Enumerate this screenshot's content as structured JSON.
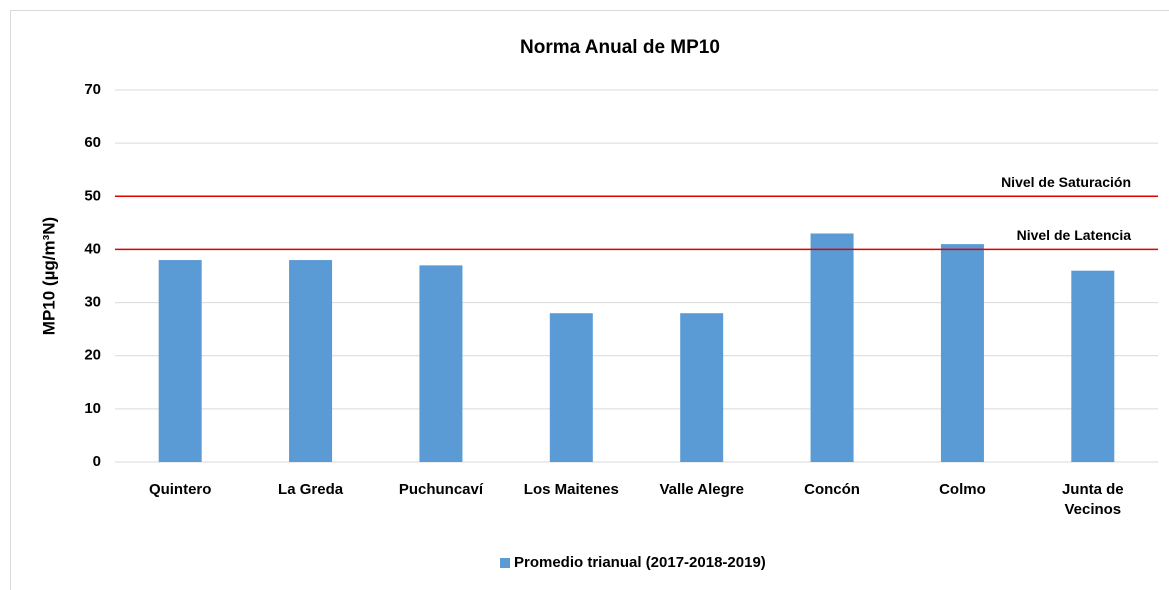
{
  "chart_data": {
    "type": "bar",
    "title": "Norma Anual de MP10",
    "y_label": "MP10 (µg/m³N)",
    "categories": [
      "Quintero",
      "La Greda",
      "Puchuncaví",
      "Los Maitenes",
      "Valle Alegre",
      "Concón",
      "Colmo",
      "Junta de Vecinos"
    ],
    "series": [
      {
        "name": "Promedio trianual (2017-2018-2019)",
        "color": "#5b9bd5",
        "values": [
          38,
          38,
          37,
          28,
          28,
          43,
          41,
          36
        ]
      }
    ],
    "reference_lines": [
      {
        "value": 50,
        "label": "Nivel de Saturación",
        "color": "#e00000"
      },
      {
        "value": 40,
        "label": "Nivel de Latencia",
        "color": "#e00000"
      }
    ],
    "ylim": [
      0,
      70
    ],
    "yticks": [
      0,
      10,
      20,
      30,
      40,
      50,
      60,
      70
    ],
    "grid": true,
    "legend": "bottom"
  }
}
